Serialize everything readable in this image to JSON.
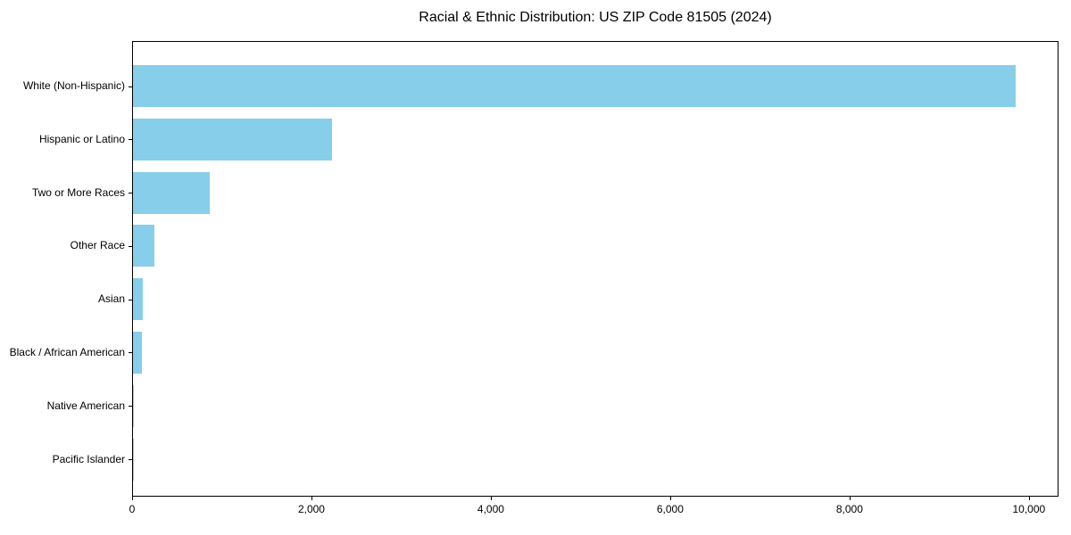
{
  "title": "Racial & Ethnic Distribution: US ZIP Code 81505 (2024)",
  "chart_data": {
    "type": "bar",
    "orientation": "horizontal",
    "title": "Racial & Ethnic Distribution: US ZIP Code 81505 (2024)",
    "xlabel": "",
    "ylabel": "",
    "categories": [
      "White (Non-Hispanic)",
      "Hispanic or Latino",
      "Two or More Races",
      "Other Race",
      "Asian",
      "Black / African American",
      "Native American",
      "Pacific Islander"
    ],
    "values": [
      9840,
      2220,
      855,
      235,
      110,
      100,
      10,
      5
    ],
    "xlim": [
      0,
      10330
    ],
    "x_ticks": [
      0,
      2000,
      4000,
      6000,
      8000,
      10000
    ],
    "x_tick_labels": [
      "0",
      "2,000",
      "4,000",
      "6,000",
      "8,000",
      "10,000"
    ],
    "bar_color": "#87CEEB",
    "grid": false,
    "legend": false
  }
}
